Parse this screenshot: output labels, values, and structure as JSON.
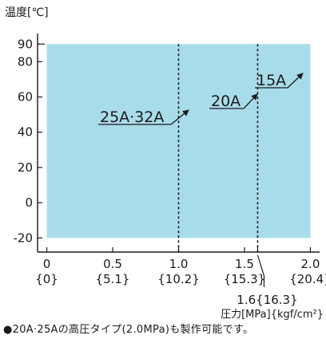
{
  "chart_data": {
    "type": "area",
    "ylabel": "温度[℃]",
    "xlabel": "圧力[MPa]{kgf/cm²}",
    "xlim": [
      -0.07,
      2.07
    ],
    "ylim": [
      -28,
      96
    ],
    "x_ticks": [
      {
        "value": 0,
        "label": "0",
        "sub": "{0}"
      },
      {
        "value": 0.5,
        "label": "0.5",
        "sub": "{5.1}"
      },
      {
        "value": 1.0,
        "label": "1.0",
        "sub": "{10.2}"
      },
      {
        "value": 1.5,
        "label": "1.5",
        "sub": "{15.3}"
      },
      {
        "value": 2.0,
        "label": "2.0",
        "sub": "{20.4}"
      }
    ],
    "y_ticks": [
      {
        "value": 90,
        "label": "90"
      },
      {
        "value": 80,
        "label": "80"
      },
      {
        "value": 60,
        "label": "60"
      },
      {
        "value": 40,
        "label": "40"
      },
      {
        "value": 20,
        "label": "20"
      },
      {
        "value": 0,
        "label": "0"
      },
      {
        "value": -20,
        "label": "-20"
      }
    ],
    "region": {
      "x": [
        0,
        2.0
      ],
      "y": [
        -20,
        90
      ],
      "color": "#a9dcea"
    },
    "limits": [
      {
        "label": "25A·32A",
        "x": 1.0,
        "y_max": 90
      },
      {
        "label": "20A",
        "x": 1.6,
        "y_max": 90
      },
      {
        "label": "15A",
        "x": 2.0,
        "y_max": 90
      }
    ],
    "extra_tick": {
      "value": 1.6,
      "label": "1.6{16.3}"
    },
    "grid": false
  },
  "note": "●20A·25Aの高圧タイプ(2.0MPa)も製作可能です。"
}
